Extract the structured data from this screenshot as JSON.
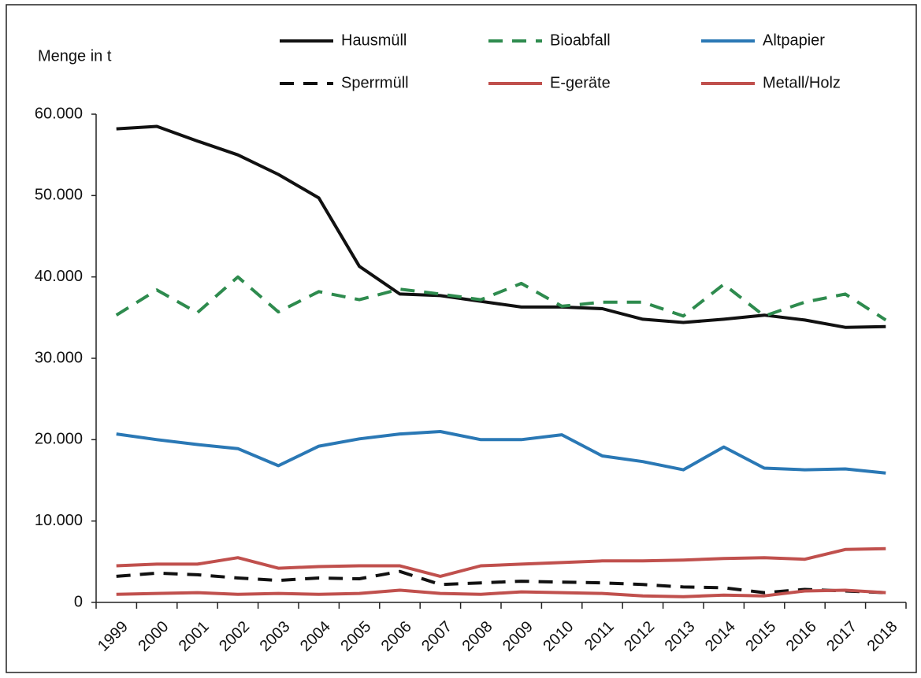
{
  "chart_data": {
    "type": "line",
    "ylabel": "Menge in t",
    "categories": [
      "1999",
      "2000",
      "2001",
      "2002",
      "2003",
      "2004",
      "2005",
      "2006",
      "2007",
      "2008",
      "2009",
      "2010",
      "2011",
      "2012",
      "2013",
      "2014",
      "2015",
      "2016",
      "2017",
      "2018"
    ],
    "ylim": [
      0,
      60000
    ],
    "yticks": [
      0,
      {
        "value": 10000,
        "label": "10.000"
      },
      {
        "value": 20000,
        "label": "20.000"
      },
      {
        "value": 30000,
        "label": "30.000"
      },
      {
        "value": 40000,
        "label": "40.000"
      },
      {
        "value": 50000,
        "label": "50.000"
      },
      {
        "value": 60000,
        "label": "60.000"
      }
    ],
    "grid": false,
    "legend": "top",
    "series": [
      {
        "name": "Hausmüll",
        "color": "#111111",
        "style": "solid",
        "values": [
          58200,
          58500,
          56700,
          55000,
          52600,
          49700,
          41300,
          37900,
          37700,
          37000,
          36300,
          36300,
          36100,
          34800,
          34400,
          34800,
          35300,
          34700,
          33800,
          33900
        ]
      },
      {
        "name": "Bioabfall",
        "color": "#2e8b4e",
        "style": "dashed",
        "values": [
          35300,
          38400,
          35600,
          40000,
          35700,
          38200,
          37200,
          38500,
          37900,
          37200,
          39200,
          36400,
          36900,
          36900,
          35200,
          39100,
          35200,
          36900,
          37900,
          34700
        ]
      },
      {
        "name": "Altpapier",
        "color": "#2a78b5",
        "style": "solid",
        "values": [
          20700,
          20000,
          19400,
          18900,
          16800,
          19200,
          20100,
          20700,
          21000,
          20000,
          20000,
          20600,
          18000,
          17300,
          16300,
          19100,
          16500,
          16300,
          16400,
          15900
        ]
      },
      {
        "name": "Sperrmüll",
        "color": "#111111",
        "style": "dashed",
        "values": [
          3200,
          3600,
          3400,
          3000,
          2700,
          3000,
          2900,
          3800,
          2200,
          2400,
          2600,
          2500,
          2400,
          2200,
          1900,
          1800,
          1200,
          1600,
          1400,
          1200
        ]
      },
      {
        "name": "E-geräte",
        "color": "#c0504d",
        "style": "solid",
        "values": [
          4500,
          4700,
          4700,
          5500,
          4200,
          4400,
          4500,
          4500,
          3200,
          4500,
          4700,
          4900,
          5100,
          5100,
          5200,
          5400,
          5500,
          5300,
          6500,
          6600
        ]
      },
      {
        "name": "Metall/Holz",
        "color": "#c0504d",
        "style": "solid",
        "values": [
          1000,
          1100,
          1200,
          1000,
          1100,
          1000,
          1100,
          1500,
          1100,
          1000,
          1300,
          1200,
          1100,
          800,
          700,
          900,
          800,
          1400,
          1500,
          1200
        ]
      }
    ]
  }
}
